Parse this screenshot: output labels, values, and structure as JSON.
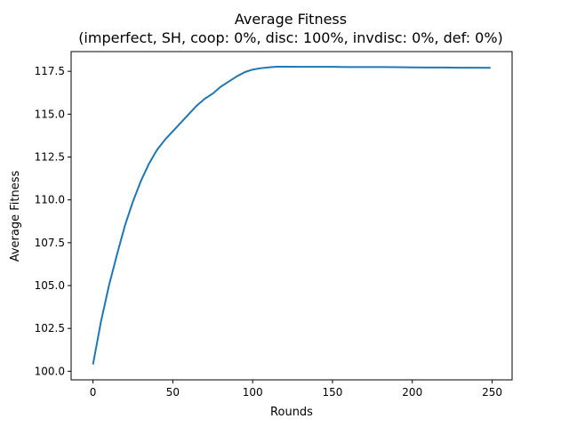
{
  "chart_data": {
    "type": "line",
    "title": "Average Fitness",
    "subtitle": "(imperfect, SH, coop: 0%, disc: 100%, invdisc: 0%, def: 0%)",
    "xlabel": "Rounds",
    "ylabel": "Average Fitness",
    "xlim": [
      -13.7,
      262.5
    ],
    "ylim": [
      99.5,
      118.65
    ],
    "xticks": [
      0,
      50,
      100,
      150,
      200,
      250
    ],
    "yticks": [
      100.0,
      102.5,
      105.0,
      107.5,
      110.0,
      112.5,
      115.0,
      117.5
    ],
    "xtick_labels": [
      "0",
      "50",
      "100",
      "150",
      "200",
      "250"
    ],
    "ytick_labels": [
      "100.0",
      "102.5",
      "105.0",
      "107.5",
      "110.0",
      "112.5",
      "115.0",
      "117.5"
    ],
    "grid": false,
    "series": [
      {
        "color": "#1f77b4",
        "x": [
          0,
          5,
          10,
          15,
          20,
          25,
          30,
          35,
          40,
          45,
          50,
          55,
          60,
          65,
          70,
          75,
          80,
          85,
          90,
          95,
          100,
          105,
          110,
          115,
          120,
          130,
          140,
          150,
          160,
          170,
          180,
          190,
          200,
          210,
          220,
          230,
          240,
          249
        ],
        "y": [
          100.4,
          102.9,
          105.0,
          106.8,
          108.5,
          109.9,
          111.1,
          112.1,
          112.9,
          113.5,
          114.0,
          114.5,
          115.0,
          115.5,
          115.9,
          116.2,
          116.6,
          116.9,
          117.2,
          117.45,
          117.6,
          117.68,
          117.73,
          117.77,
          117.77,
          117.76,
          117.76,
          117.76,
          117.75,
          117.75,
          117.75,
          117.74,
          117.73,
          117.72,
          117.72,
          117.71,
          117.71,
          117.7
        ]
      }
    ]
  }
}
